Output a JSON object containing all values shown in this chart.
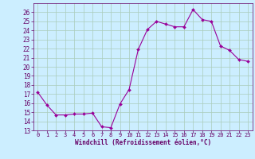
{
  "title": "",
  "xlabel": "Windchill (Refroidissement éolien,°C)",
  "x": [
    0,
    1,
    2,
    3,
    4,
    5,
    6,
    7,
    8,
    9,
    10,
    11,
    12,
    13,
    14,
    15,
    16,
    17,
    18,
    19,
    20,
    21,
    22,
    23
  ],
  "y": [
    17.2,
    15.8,
    14.7,
    14.7,
    14.8,
    14.8,
    14.9,
    13.4,
    13.3,
    15.9,
    17.5,
    21.9,
    24.1,
    25.0,
    24.7,
    24.4,
    24.4,
    26.3,
    25.2,
    25.0,
    22.3,
    21.8,
    20.8,
    20.6
  ],
  "ylim": [
    13,
    27
  ],
  "xlim": [
    -0.5,
    23.5
  ],
  "yticks": [
    13,
    14,
    15,
    16,
    17,
    18,
    19,
    20,
    21,
    22,
    23,
    24,
    25,
    26
  ],
  "xticks": [
    0,
    1,
    2,
    3,
    4,
    5,
    6,
    7,
    8,
    9,
    10,
    11,
    12,
    13,
    14,
    15,
    16,
    17,
    18,
    19,
    20,
    21,
    22,
    23
  ],
  "line_color": "#990099",
  "marker": "D",
  "marker_size": 2.0,
  "line_width": 0.8,
  "bg_color": "#cceeff",
  "grid_color": "#aaccbb",
  "label_color": "#660066",
  "tick_color": "#660066",
  "xlabel_fontsize": 5.5,
  "ytick_fontsize": 5.5,
  "xtick_fontsize": 5.0,
  "figwidth": 3.2,
  "figheight": 2.0,
  "dpi": 100
}
